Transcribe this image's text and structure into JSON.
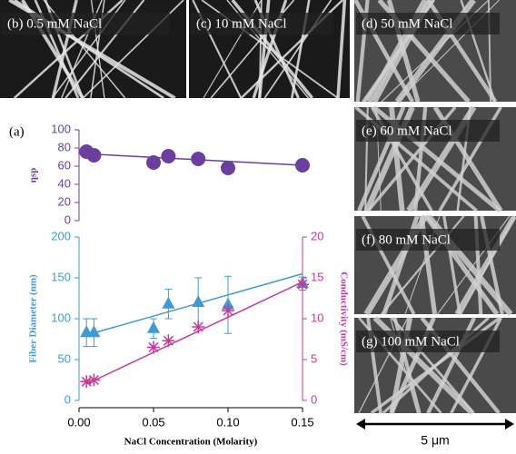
{
  "panel_label": "(a)",
  "images": [
    {
      "label": "(b) 0.5 mM NaCl"
    },
    {
      "label": "(c) 10 mM NaCl"
    },
    {
      "label": "(d) 50 mM NaCl"
    },
    {
      "label": "(e) 60 mM NaCl"
    },
    {
      "label": "(f) 80 mM NaCl"
    },
    {
      "label": "(g) 100 mM NaCl"
    }
  ],
  "scale_bar": "5 μm",
  "chart_data": [
    {
      "type": "scatter",
      "ylabel": "ηsp",
      "color": "#6a3fa0",
      "xlim": [
        0,
        0.15
      ],
      "ylim": [
        0,
        100
      ],
      "yticks": [
        0,
        20,
        40,
        60,
        80,
        100
      ],
      "x": [
        0.005,
        0.01,
        0.05,
        0.06,
        0.08,
        0.1,
        0.15
      ],
      "values": [
        76,
        72,
        64,
        71,
        68,
        58,
        61
      ],
      "fit": {
        "x": [
          0,
          0.15
        ],
        "values": [
          74,
          61
        ]
      }
    },
    {
      "type": "scatter",
      "xlabel": "NaCl Concentration (Molarity)",
      "ylabel": "Fiber Diameter (nm)",
      "y2label": "Conductivity (mS/cm)",
      "xlim": [
        0,
        0.15
      ],
      "xticks": [
        {
          "value": 0,
          "label": "0.00"
        },
        {
          "value": 0.05,
          "label": "0.05"
        },
        {
          "value": 0.1,
          "label": "0.10"
        },
        {
          "value": 0.15,
          "label": "0.15"
        }
      ],
      "ylim": [
        0,
        200
      ],
      "yticks": [
        0,
        50,
        100,
        150,
        200
      ],
      "y2lim": [
        0,
        20
      ],
      "y2ticks": [
        0,
        5,
        10,
        15,
        20
      ],
      "x": [
        0.005,
        0.01,
        0.05,
        0.06,
        0.08,
        0.1,
        0.15
      ],
      "series": [
        {
          "color": "#3f9bd1",
          "marker": "triangle",
          "values": [
            83,
            83,
            88,
            118,
            120,
            117,
            143
          ],
          "errors": [
            17,
            17,
            12,
            18,
            30,
            35,
            8
          ],
          "fit": {
            "x": [
              0.005,
              0.15
            ],
            "values": [
              80,
              155
            ]
          }
        },
        {
          "color": "#c8379a",
          "marker": "star",
          "axis": "y2",
          "values": [
            2.3,
            2.5,
            6.5,
            7.3,
            9,
            11,
            14.2
          ],
          "fit": {
            "x": [
              0.005,
              0.15
            ],
            "values": [
              2,
              14.5
            ]
          }
        }
      ]
    }
  ]
}
